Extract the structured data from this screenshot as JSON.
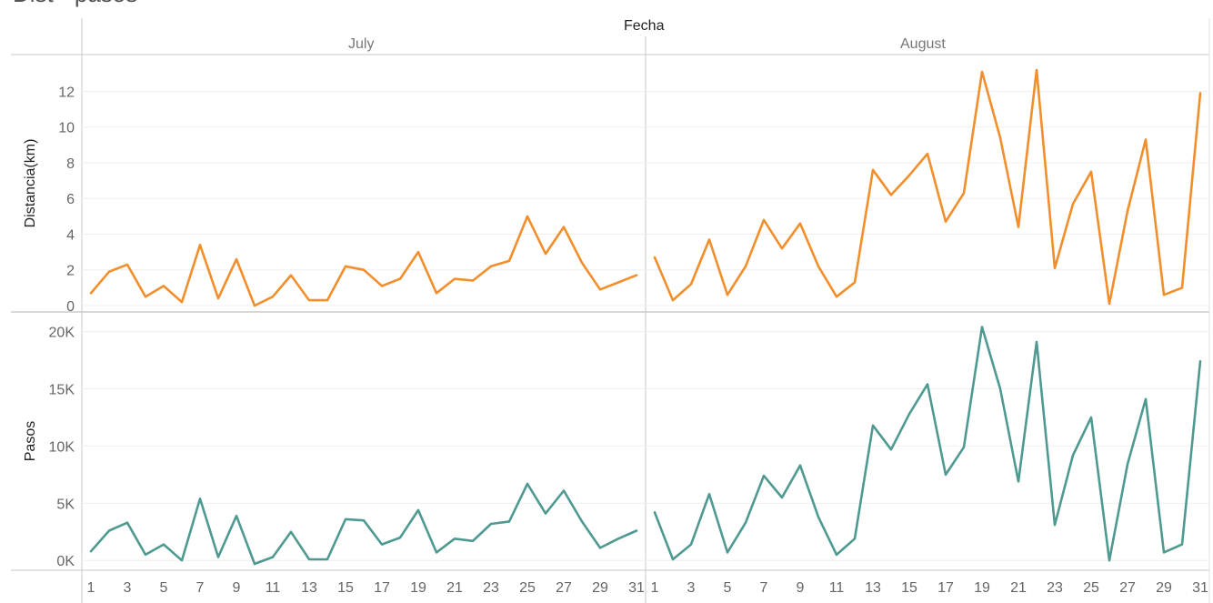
{
  "page": {
    "title": "Dist - pasos"
  },
  "chart_data": {
    "type": "line",
    "column_header": "Fecha",
    "months": [
      "July",
      "August"
    ],
    "x_ticks": [
      1,
      3,
      5,
      7,
      9,
      11,
      13,
      15,
      17,
      19,
      21,
      23,
      25,
      27,
      29,
      31
    ],
    "panels": [
      {
        "measure": "Distancia(km)",
        "color": "#f28e2b",
        "ylim": [
          0,
          13.5
        ],
        "y_ticks": [
          0,
          2,
          4,
          6,
          8,
          10,
          12
        ],
        "y_tick_labels": [
          "0",
          "2",
          "4",
          "6",
          "8",
          "10",
          "12"
        ],
        "series": [
          {
            "month": "July",
            "values": [
              0.7,
              1.9,
              2.3,
              0.5,
              1.1,
              0.2,
              3.4,
              0.4,
              2.6,
              0.0,
              0.5,
              1.7,
              0.3,
              0.3,
              2.2,
              2.0,
              1.1,
              1.5,
              3.0,
              0.7,
              1.5,
              1.4,
              2.2,
              2.5,
              5.0,
              2.9,
              4.4,
              2.4,
              0.9,
              1.3,
              1.7
            ]
          },
          {
            "month": "August",
            "values": [
              2.7,
              0.3,
              1.2,
              3.7,
              0.6,
              2.2,
              4.8,
              3.2,
              4.6,
              2.2,
              0.5,
              1.3,
              7.6,
              6.2,
              7.3,
              8.5,
              4.7,
              6.3,
              13.1,
              9.4,
              4.4,
              13.2,
              2.1,
              5.7,
              7.5,
              0.1,
              5.3,
              9.3,
              0.6,
              1.0,
              11.9
            ]
          }
        ]
      },
      {
        "measure": "Pasos",
        "color": "#4e9a91",
        "ylim": [
          -300,
          21000
        ],
        "y_ticks": [
          0,
          5000,
          10000,
          15000,
          20000
        ],
        "y_tick_labels": [
          "0K",
          "5K",
          "10K",
          "15K",
          "20K"
        ],
        "series": [
          {
            "month": "July",
            "values": [
              800,
              2600,
              3300,
              500,
              1400,
              0,
              5400,
              300,
              3900,
              -300,
              300,
              2500,
              100,
              100,
              3600,
              3500,
              1400,
              2000,
              4400,
              700,
              1900,
              1700,
              3200,
              3400,
              6700,
              4100,
              6100,
              3400,
              1100,
              1900,
              2600
            ]
          },
          {
            "month": "August",
            "values": [
              4200,
              100,
              1400,
              5800,
              700,
              3300,
              7400,
              5500,
              8300,
              3800,
              500,
              1900,
              11800,
              9700,
              12800,
              15400,
              7500,
              9900,
              20400,
              15000,
              6900,
              19100,
              3100,
              9200,
              12500,
              0,
              8400,
              14100,
              700,
              1400,
              17400
            ]
          }
        ]
      }
    ]
  }
}
